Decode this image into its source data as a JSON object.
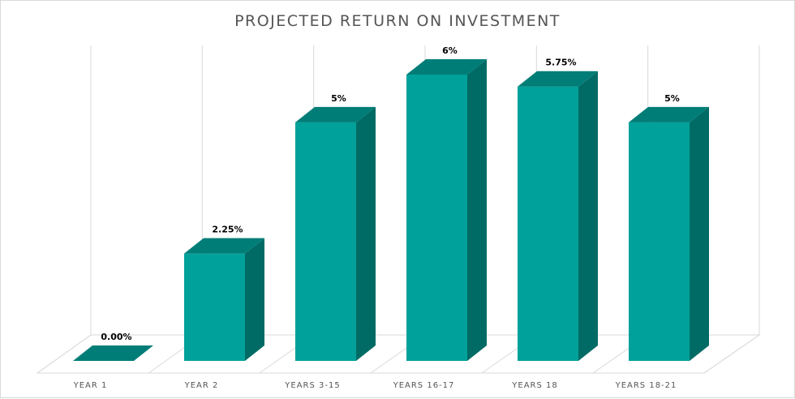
{
  "chart_data": {
    "type": "bar",
    "title": "PROJECTED RETURN ON INVESTMENT",
    "categories": [
      "YEAR 1",
      "YEAR 2",
      "YEARS 3-15",
      "YEARS 16-17",
      "YEARS 18",
      "YEARS 18-21"
    ],
    "values": [
      0,
      2.25,
      5,
      6,
      5.75,
      5
    ],
    "data_labels": [
      "0.00%",
      "2.25%",
      "5%",
      "6%",
      "5.75%",
      "5%"
    ],
    "value_unit": "%",
    "ylim": [
      0,
      6
    ],
    "grid": true,
    "legend": "none",
    "three_d": true,
    "colors": {
      "bar_front": "#00A19A",
      "bar_side": "#006B65",
      "bar_top": "#007D77",
      "grid": "#d9d9d9",
      "title": "#555555"
    }
  }
}
